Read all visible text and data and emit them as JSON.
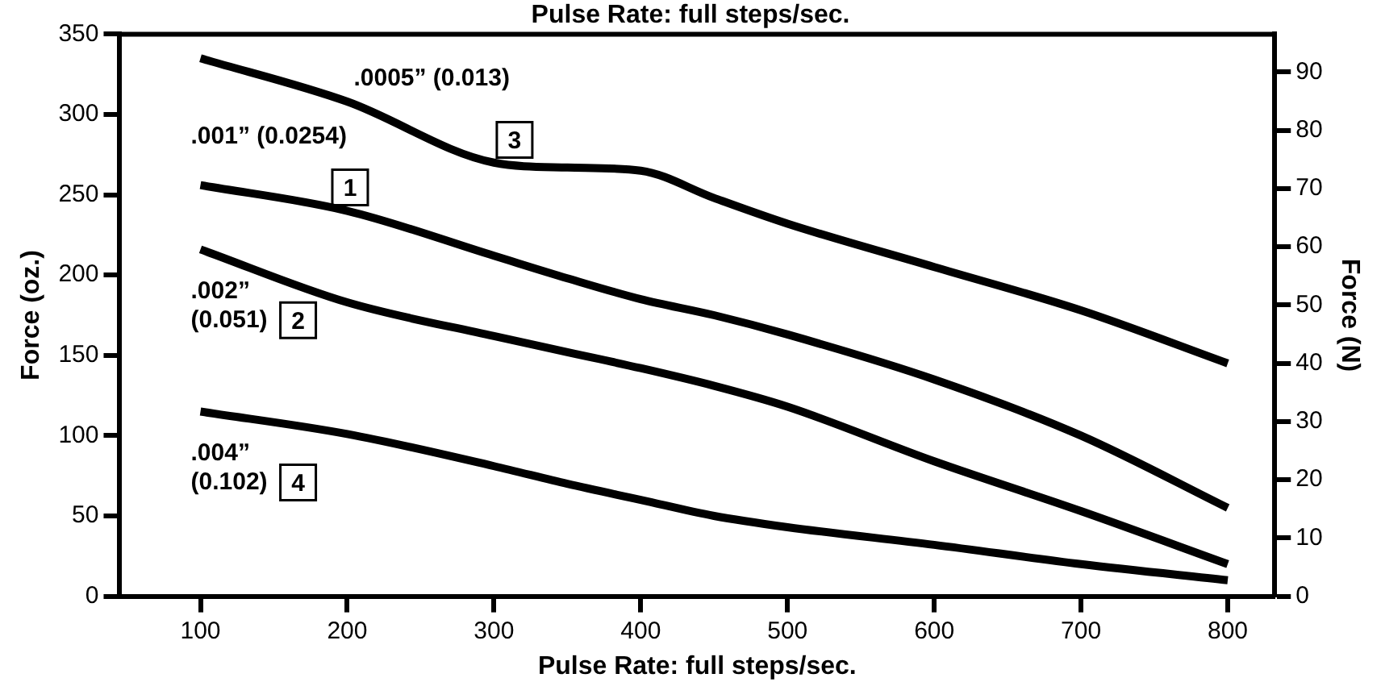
{
  "chart_data": {
    "type": "line",
    "title": "Pulse Rate: full steps/sec.",
    "xlabel": "Pulse Rate: full steps/sec.",
    "ylabel": "Force (oz.)",
    "y2label": "Force (N)",
    "x": [
      100,
      200,
      300,
      350,
      400,
      450,
      500,
      600,
      700,
      800
    ],
    "xlim": [
      45,
      832
    ],
    "xticks": [
      100,
      200,
      300,
      400,
      500,
      600,
      700,
      800
    ],
    "ylim": [
      0,
      350
    ],
    "yticks": [
      0,
      50,
      100,
      150,
      200,
      250,
      300,
      350
    ],
    "y2lim": [
      0,
      96.5
    ],
    "y2ticks": [
      0,
      10,
      20,
      30,
      40,
      50,
      60,
      70,
      80,
      90
    ],
    "grid": false,
    "legend": false,
    "marker": "none",
    "line_style": "solid",
    "series": [
      {
        "name": "1",
        "color": "#000000",
        "values": [
          256,
          240,
          212,
          198,
          185,
          175,
          163,
          135,
          100,
          55
        ]
      },
      {
        "name": "2",
        "color": "#000000",
        "values": [
          216,
          183,
          162,
          152,
          142,
          131,
          118,
          84,
          53,
          20
        ]
      },
      {
        "name": "3",
        "color": "#000000",
        "values": [
          335,
          308,
          270,
          267,
          265,
          248,
          232,
          205,
          178,
          145
        ]
      },
      {
        "name": "4",
        "color": "#000000",
        "values": [
          115,
          101,
          81,
          70,
          60,
          50,
          43,
          32,
          20,
          10
        ]
      }
    ],
    "annotations": [
      ".001” (0.0254)",
      ".002”\n(0.051)",
      ".0005” (0.013)",
      ".004”\n(0.102)"
    ]
  }
}
